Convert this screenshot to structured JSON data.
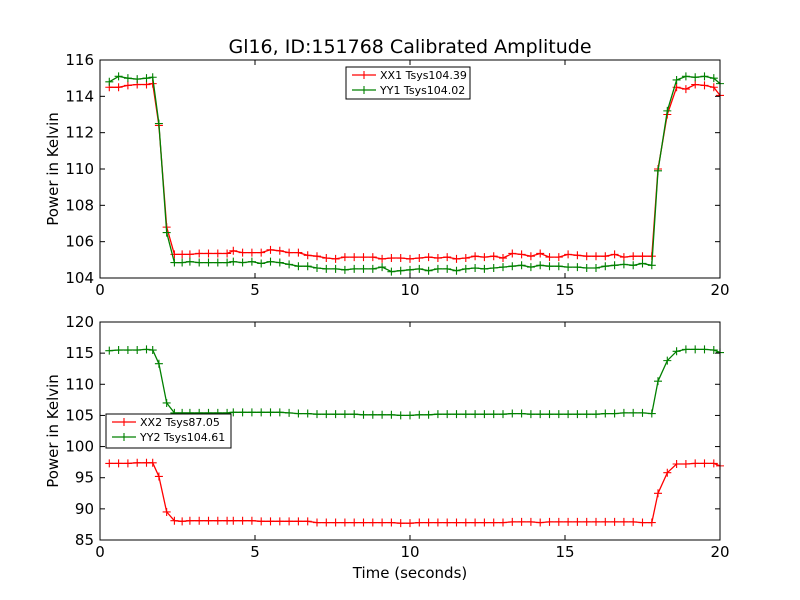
{
  "title": "Gl16, ID:151768 Calibrated Amplitude",
  "colors": {
    "xx": "#ff0000",
    "yy": "#008000"
  },
  "chart_data": [
    {
      "type": "line",
      "ylabel": "Power in Kelvin",
      "xlabel": "",
      "xlim": [
        0,
        20
      ],
      "ylim": [
        104,
        116
      ],
      "xticks": [
        "0",
        "5",
        "10",
        "15",
        "20"
      ],
      "yticks": [
        "104",
        "106",
        "108",
        "110",
        "112",
        "114",
        "116"
      ],
      "legend_position": "top-center",
      "x": [
        0.3,
        0.6,
        0.9,
        1.2,
        1.5,
        1.7,
        1.9,
        2.15,
        2.4,
        2.65,
        2.9,
        3.2,
        3.5,
        3.8,
        4.1,
        4.3,
        4.6,
        4.9,
        5.2,
        5.5,
        5.8,
        6.1,
        6.4,
        6.7,
        7.0,
        7.3,
        7.6,
        7.9,
        8.2,
        8.5,
        8.8,
        9.1,
        9.4,
        9.7,
        10.0,
        10.3,
        10.6,
        10.9,
        11.2,
        11.5,
        11.8,
        12.1,
        12.4,
        12.7,
        13.0,
        13.3,
        13.6,
        13.9,
        14.2,
        14.5,
        14.8,
        15.1,
        15.4,
        15.7,
        16.0,
        16.3,
        16.6,
        16.9,
        17.2,
        17.5,
        17.8,
        18.0,
        18.3,
        18.6,
        18.9,
        19.2,
        19.5,
        19.8,
        20.0
      ],
      "series": [
        {
          "name": "XX1 Tsys104.39",
          "values": [
            114.5,
            114.5,
            114.6,
            114.65,
            114.65,
            114.7,
            112.4,
            106.8,
            105.3,
            105.3,
            105.3,
            105.35,
            105.35,
            105.35,
            105.35,
            105.5,
            105.4,
            105.4,
            105.4,
            105.55,
            105.5,
            105.4,
            105.4,
            105.25,
            105.2,
            105.1,
            105.05,
            105.15,
            105.15,
            105.15,
            105.15,
            105.05,
            105.1,
            105.1,
            105.05,
            105.1,
            105.15,
            105.1,
            105.15,
            105.05,
            105.1,
            105.2,
            105.15,
            105.2,
            105.1,
            105.35,
            105.3,
            105.2,
            105.35,
            105.15,
            105.15,
            105.3,
            105.25,
            105.2,
            105.2,
            105.2,
            105.3,
            105.15,
            105.2,
            105.2,
            105.2,
            110.0,
            113.0,
            114.5,
            114.4,
            114.65,
            114.6,
            114.5,
            114.05
          ]
        },
        {
          "name": "YY1 Tsys104.02",
          "values": [
            114.8,
            115.1,
            115.0,
            114.95,
            115.0,
            115.05,
            112.5,
            106.5,
            104.85,
            104.85,
            104.9,
            104.85,
            104.85,
            104.85,
            104.85,
            104.9,
            104.85,
            104.9,
            104.8,
            104.9,
            104.85,
            104.75,
            104.65,
            104.65,
            104.55,
            104.5,
            104.5,
            104.45,
            104.5,
            104.5,
            104.5,
            104.6,
            104.35,
            104.4,
            104.45,
            104.5,
            104.4,
            104.5,
            104.5,
            104.4,
            104.5,
            104.55,
            104.5,
            104.55,
            104.6,
            104.65,
            104.7,
            104.6,
            104.7,
            104.65,
            104.65,
            104.6,
            104.6,
            104.55,
            104.55,
            104.65,
            104.7,
            104.75,
            104.7,
            104.8,
            104.7,
            109.9,
            113.2,
            114.9,
            115.1,
            115.05,
            115.1,
            115.0,
            114.7
          ]
        }
      ]
    },
    {
      "type": "line",
      "ylabel": "Power in Kelvin",
      "xlabel": "Time (seconds)",
      "xlim": [
        0,
        20
      ],
      "ylim": [
        85,
        120
      ],
      "xticks": [
        "0",
        "5",
        "10",
        "15",
        "20"
      ],
      "yticks": [
        "85",
        "90",
        "95",
        "100",
        "105",
        "110",
        "115",
        "120"
      ],
      "legend_position": "center-left",
      "x": [
        0.3,
        0.6,
        0.9,
        1.2,
        1.5,
        1.7,
        1.9,
        2.15,
        2.4,
        2.65,
        2.9,
        3.2,
        3.5,
        3.8,
        4.1,
        4.3,
        4.6,
        4.9,
        5.2,
        5.5,
        5.8,
        6.1,
        6.4,
        6.7,
        7.0,
        7.3,
        7.6,
        7.9,
        8.2,
        8.5,
        8.8,
        9.1,
        9.4,
        9.7,
        10.0,
        10.3,
        10.6,
        10.9,
        11.2,
        11.5,
        11.8,
        12.1,
        12.4,
        12.7,
        13.0,
        13.3,
        13.6,
        13.9,
        14.2,
        14.5,
        14.8,
        15.1,
        15.4,
        15.7,
        16.0,
        16.3,
        16.6,
        16.9,
        17.2,
        17.5,
        17.8,
        18.0,
        18.3,
        18.6,
        18.9,
        19.2,
        19.5,
        19.8,
        20.0
      ],
      "series": [
        {
          "name": "XX2 Tsys87.05",
          "values": [
            97.3,
            97.3,
            97.3,
            97.4,
            97.4,
            97.4,
            95.2,
            89.5,
            88.1,
            88.0,
            88.1,
            88.1,
            88.1,
            88.1,
            88.1,
            88.1,
            88.1,
            88.1,
            88.0,
            88.0,
            88.0,
            88.0,
            88.0,
            88.0,
            87.8,
            87.8,
            87.8,
            87.8,
            87.8,
            87.8,
            87.8,
            87.8,
            87.8,
            87.7,
            87.7,
            87.8,
            87.8,
            87.8,
            87.8,
            87.8,
            87.8,
            87.8,
            87.8,
            87.8,
            87.8,
            87.9,
            87.9,
            87.9,
            87.8,
            87.9,
            87.9,
            87.9,
            87.9,
            87.9,
            87.9,
            87.9,
            87.9,
            87.9,
            87.9,
            87.8,
            87.8,
            92.5,
            95.8,
            97.2,
            97.2,
            97.3,
            97.3,
            97.3,
            96.9
          ]
        },
        {
          "name": "YY2 Tsys104.61",
          "values": [
            115.4,
            115.5,
            115.5,
            115.5,
            115.6,
            115.5,
            113.3,
            107.0,
            105.4,
            105.4,
            105.4,
            105.4,
            105.4,
            105.4,
            105.4,
            105.5,
            105.5,
            105.5,
            105.5,
            105.5,
            105.5,
            105.4,
            105.3,
            105.3,
            105.2,
            105.2,
            105.2,
            105.2,
            105.2,
            105.1,
            105.1,
            105.1,
            105.1,
            105.0,
            105.0,
            105.1,
            105.1,
            105.2,
            105.2,
            105.2,
            105.2,
            105.2,
            105.2,
            105.2,
            105.2,
            105.3,
            105.3,
            105.2,
            105.2,
            105.2,
            105.2,
            105.2,
            105.2,
            105.2,
            105.2,
            105.3,
            105.3,
            105.4,
            105.4,
            105.4,
            105.3,
            110.5,
            113.8,
            115.3,
            115.6,
            115.6,
            115.6,
            115.5,
            115.1
          ]
        }
      ]
    }
  ]
}
